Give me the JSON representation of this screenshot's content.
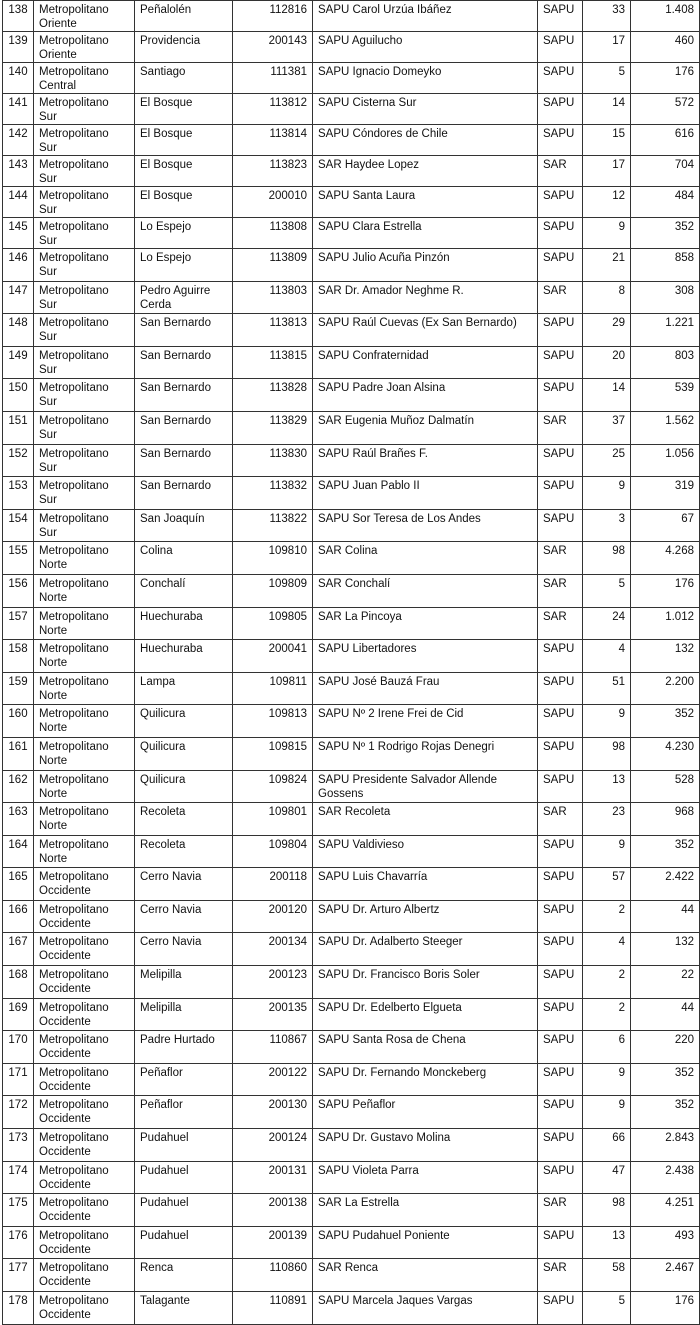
{
  "rows": [
    [
      "138",
      "Metropolitano Oriente",
      "Peñalolén",
      "112816",
      "SAPU Carol Urzúa Ibáñez",
      "SAPU",
      "33",
      "1.408"
    ],
    [
      "139",
      "Metropolitano Oriente",
      "Providencia",
      "200143",
      "SAPU Aguilucho",
      "SAPU",
      "17",
      "460"
    ],
    [
      "140",
      "Metropolitano Central",
      "Santiago",
      "111381",
      "SAPU Ignacio Domeyko",
      "SAPU",
      "5",
      "176"
    ],
    [
      "141",
      "Metropolitano Sur",
      "El Bosque",
      "113812",
      "SAPU Cisterna Sur",
      "SAPU",
      "14",
      "572"
    ],
    [
      "142",
      "Metropolitano Sur",
      "El Bosque",
      "113814",
      "SAPU Cóndores de Chile",
      "SAPU",
      "15",
      "616"
    ],
    [
      "143",
      "Metropolitano Sur",
      "El Bosque",
      "113823",
      "SAR Haydee Lopez",
      "SAR",
      "17",
      "704"
    ],
    [
      "144",
      "Metropolitano Sur",
      "El Bosque",
      "200010",
      "SAPU Santa Laura",
      "SAPU",
      "12",
      "484"
    ],
    [
      "145",
      "Metropolitano Sur",
      "Lo Espejo",
      "113808",
      "SAPU Clara Estrella",
      "SAPU",
      "9",
      "352"
    ],
    [
      "146",
      "Metropolitano Sur",
      "Lo Espejo",
      "113809",
      "SAPU Julio Acuña Pinzón",
      "SAPU",
      "21",
      "858"
    ],
    [
      "147",
      "Metropolitano Sur",
      "Pedro Aguirre Cerda",
      "113803",
      "SAR Dr. Amador Neghme R.",
      "SAR",
      "8",
      "308"
    ],
    [
      "148",
      "Metropolitano Sur",
      "San Bernardo",
      "113813",
      "SAPU Raúl Cuevas (Ex San Bernardo)",
      "SAPU",
      "29",
      "1.221"
    ],
    [
      "149",
      "Metropolitano Sur",
      "San Bernardo",
      "113815",
      "SAPU Confraternidad",
      "SAPU",
      "20",
      "803"
    ],
    [
      "150",
      "Metropolitano Sur",
      "San Bernardo",
      "113828",
      "SAPU Padre Joan Alsina",
      "SAPU",
      "14",
      "539"
    ],
    [
      "151",
      "Metropolitano Sur",
      "San Bernardo",
      "113829",
      "SAR Eugenia Muñoz Dalmatín",
      "SAR",
      "37",
      "1.562"
    ],
    [
      "152",
      "Metropolitano Sur",
      "San Bernardo",
      "113830",
      "SAPU Raúl Brañes F.",
      "SAPU",
      "25",
      "1.056"
    ],
    [
      "153",
      "Metropolitano Sur",
      "San Bernardo",
      "113832",
      "SAPU Juan Pablo II",
      "SAPU",
      "9",
      "319"
    ],
    [
      "154",
      "Metropolitano Sur",
      "San Joaquín",
      "113822",
      "SAPU Sor Teresa de Los Andes",
      "SAPU",
      "3",
      "67"
    ],
    [
      "155",
      "Metropolitano Norte",
      "Colina",
      "109810",
      "SAR Colina",
      "SAR",
      "98",
      "4.268"
    ],
    [
      "156",
      "Metropolitano Norte",
      "Conchalí",
      "109809",
      "SAR Conchalí",
      "SAR",
      "5",
      "176"
    ],
    [
      "157",
      "Metropolitano Norte",
      "Huechuraba",
      "109805",
      "SAR La Pincoya",
      "SAR",
      "24",
      "1.012"
    ],
    [
      "158",
      "Metropolitano Norte",
      "Huechuraba",
      "200041",
      "SAPU Libertadores",
      "SAPU",
      "4",
      "132"
    ],
    [
      "159",
      "Metropolitano Norte",
      "Lampa",
      "109811",
      "SAPU José Bauzá Frau",
      "SAPU",
      "51",
      "2.200"
    ],
    [
      "160",
      "Metropolitano Norte",
      "Quilicura",
      "109813",
      "SAPU Nº 2 Irene Frei de Cid",
      "SAPU",
      "9",
      "352"
    ],
    [
      "161",
      "Metropolitano Norte",
      "Quilicura",
      "109815",
      "SAPU Nº 1 Rodrigo Rojas Denegri",
      "SAPU",
      "98",
      "4.230"
    ],
    [
      "162",
      "Metropolitano Norte",
      "Quilicura",
      "109824",
      "SAPU Presidente Salvador Allende Gossens",
      "SAPU",
      "13",
      "528"
    ],
    [
      "163",
      "Metropolitano Norte",
      "Recoleta",
      "109801",
      "SAR Recoleta",
      "SAR",
      "23",
      "968"
    ],
    [
      "164",
      "Metropolitano Norte",
      "Recoleta",
      "109804",
      "SAPU Valdivieso",
      "SAPU",
      "9",
      "352"
    ],
    [
      "165",
      "Metropolitano Occidente",
      "Cerro Navia",
      "200118",
      "SAPU Luis Chavarría",
      "SAPU",
      "57",
      "2.422"
    ],
    [
      "166",
      "Metropolitano Occidente",
      "Cerro Navia",
      "200120",
      "SAPU Dr. Arturo Albertz",
      "SAPU",
      "2",
      "44"
    ],
    [
      "167",
      "Metropolitano Occidente",
      "Cerro Navia",
      "200134",
      "SAPU Dr. Adalberto Steeger",
      "SAPU",
      "4",
      "132"
    ],
    [
      "168",
      "Metropolitano Occidente",
      "Melipilla",
      "200123",
      "SAPU Dr. Francisco Boris Soler",
      "SAPU",
      "2",
      "22"
    ],
    [
      "169",
      "Metropolitano Occidente",
      "Melipilla",
      "200135",
      "SAPU Dr. Edelberto Elgueta",
      "SAPU",
      "2",
      "44"
    ],
    [
      "170",
      "Metropolitano Occidente",
      "Padre Hurtado",
      "110867",
      "SAPU Santa Rosa de Chena",
      "SAPU",
      "6",
      "220"
    ],
    [
      "171",
      "Metropolitano Occidente",
      "Peñaflor",
      "200122",
      "SAPU Dr. Fernando Monckeberg",
      "SAPU",
      "9",
      "352"
    ],
    [
      "172",
      "Metropolitano Occidente",
      "Peñaflor",
      "200130",
      "SAPU Peñaflor",
      "SAPU",
      "9",
      "352"
    ],
    [
      "173",
      "Metropolitano Occidente",
      "Pudahuel",
      "200124",
      "SAPU Dr. Gustavo Molina",
      "SAPU",
      "66",
      "2.843"
    ],
    [
      "174",
      "Metropolitano Occidente",
      "Pudahuel",
      "200131",
      "SAPU Violeta Parra",
      "SAPU",
      "47",
      "2.438"
    ],
    [
      "175",
      "Metropolitano Occidente",
      "Pudahuel",
      "200138",
      "SAR La Estrella",
      "SAR",
      "98",
      "4.251"
    ],
    [
      "176",
      "Metropolitano Occidente",
      "Pudahuel",
      "200139",
      "SAPU Pudahuel Poniente",
      "SAPU",
      "13",
      "493"
    ],
    [
      "177",
      "Metropolitano Occidente",
      "Renca",
      "110860",
      "SAR Renca",
      "SAR",
      "58",
      "2.467"
    ],
    [
      "178",
      "Metropolitano Occidente",
      "Talagante",
      "110891",
      "SAPU Marcela Jaques Vargas",
      "SAPU",
      "5",
      "176"
    ]
  ]
}
